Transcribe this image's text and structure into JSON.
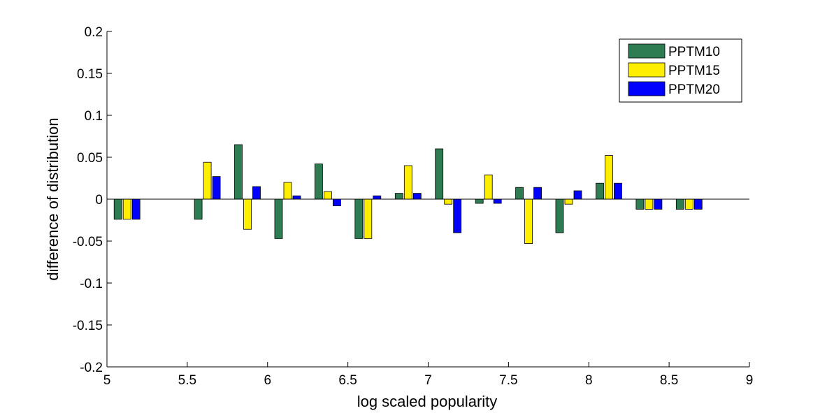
{
  "chart_data": {
    "type": "bar",
    "xlabel": "log scaled popularity",
    "ylabel": "difference of distribution",
    "xlim": [
      5,
      9
    ],
    "ylim": [
      -0.2,
      0.2
    ],
    "xticks": [
      "5",
      "5.5",
      "6",
      "6.5",
      "7",
      "7.5",
      "8",
      "8.5",
      "9"
    ],
    "yticks": [
      "-0.2",
      "-0.15",
      "-0.1",
      "-0.05",
      "0",
      "0.05",
      "0.1",
      "0.15",
      "0.2"
    ],
    "grid": false,
    "legend_position": "top-right",
    "x": [
      5.125,
      5.625,
      5.875,
      6.125,
      6.375,
      6.625,
      6.875,
      7.125,
      7.375,
      7.625,
      7.875,
      8.125,
      8.375,
      8.625
    ],
    "series": [
      {
        "name": "PPTM10",
        "color": "#2e7d52",
        "values": [
          -0.024,
          -0.024,
          0.065,
          -0.047,
          0.042,
          -0.047,
          0.007,
          0.06,
          -0.005,
          0.014,
          -0.04,
          0.019,
          -0.012,
          -0.012
        ]
      },
      {
        "name": "PPTM15",
        "color": "#ffee00",
        "values": [
          -0.024,
          0.044,
          -0.036,
          0.02,
          0.009,
          -0.047,
          0.04,
          -0.006,
          0.029,
          -0.053,
          -0.006,
          0.052,
          -0.012,
          -0.012
        ]
      },
      {
        "name": "PPTM20",
        "color": "#0000ff",
        "values": [
          -0.024,
          0.027,
          0.015,
          0.004,
          -0.008,
          0.004,
          0.007,
          -0.04,
          -0.005,
          0.014,
          0.01,
          0.019,
          -0.012,
          -0.012
        ]
      }
    ]
  }
}
